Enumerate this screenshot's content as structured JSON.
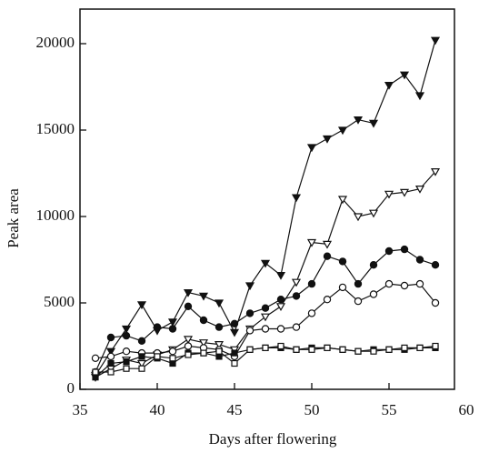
{
  "chart_data": {
    "type": "line",
    "x_label": "Days after flowering",
    "y_label": "Peak area",
    "x": [
      36,
      37,
      38,
      39,
      40,
      41,
      42,
      43,
      44,
      45,
      46,
      47,
      48,
      49,
      50,
      51,
      52,
      53,
      54,
      55,
      56,
      57,
      58
    ],
    "series": [
      {
        "color": "#111111",
        "marker": "triangle-down-filled",
        "values": [
          800,
          2200,
          3500,
          4900,
          3400,
          3900,
          5600,
          5400,
          5000,
          3300,
          6000,
          7300,
          6600,
          11100,
          14000,
          14500,
          15000,
          15600,
          15400,
          17600,
          18200,
          17000,
          20200
        ]
      },
      {
        "color": "#111111",
        "marker": "triangle-down-open",
        "values": [
          700,
          1200,
          1700,
          1500,
          2000,
          2300,
          2900,
          2700,
          2600,
          2300,
          3500,
          4200,
          4800,
          6200,
          8500,
          8400,
          11000,
          10000,
          10200,
          11300,
          11400,
          11600,
          12600
        ]
      },
      {
        "color": "#111111",
        "marker": "circle-filled",
        "values": [
          1000,
          3000,
          3100,
          2800,
          3600,
          3500,
          4800,
          4000,
          3600,
          3800,
          4400,
          4700,
          5200,
          5400,
          6100,
          7700,
          7400,
          6100,
          7200,
          8000,
          8100,
          7500,
          7200
        ]
      },
      {
        "color": "#111111",
        "marker": "circle-open",
        "values": [
          1800,
          1900,
          2200,
          2100,
          2100,
          2200,
          2500,
          2400,
          2300,
          1900,
          3400,
          3500,
          3500,
          3600,
          4400,
          5200,
          5900,
          5100,
          5500,
          6100,
          6000,
          6100,
          5000
        ]
      },
      {
        "color": "#111111",
        "marker": "square-filled",
        "values": [
          700,
          1500,
          1600,
          1900,
          1800,
          1500,
          2100,
          2100,
          1900,
          2100,
          2300,
          2400,
          2400,
          2300,
          2400,
          2400,
          2300,
          2200,
          2300,
          2300,
          2300,
          2400,
          2400
        ]
      },
      {
        "color": "#111111",
        "marker": "square-open",
        "values": [
          1000,
          1000,
          1200,
          1200,
          1900,
          1800,
          2000,
          2100,
          2200,
          1500,
          2300,
          2400,
          2500,
          2300,
          2300,
          2400,
          2300,
          2200,
          2200,
          2300,
          2400,
          2400,
          2500
        ]
      }
    ],
    "xlim": [
      35,
      60
    ],
    "xticks": [
      35,
      40,
      45,
      50,
      55,
      60
    ],
    "ylim": [
      0,
      22000
    ],
    "yticks": [
      0,
      5000,
      10000,
      15000,
      20000
    ],
    "grid": false
  }
}
